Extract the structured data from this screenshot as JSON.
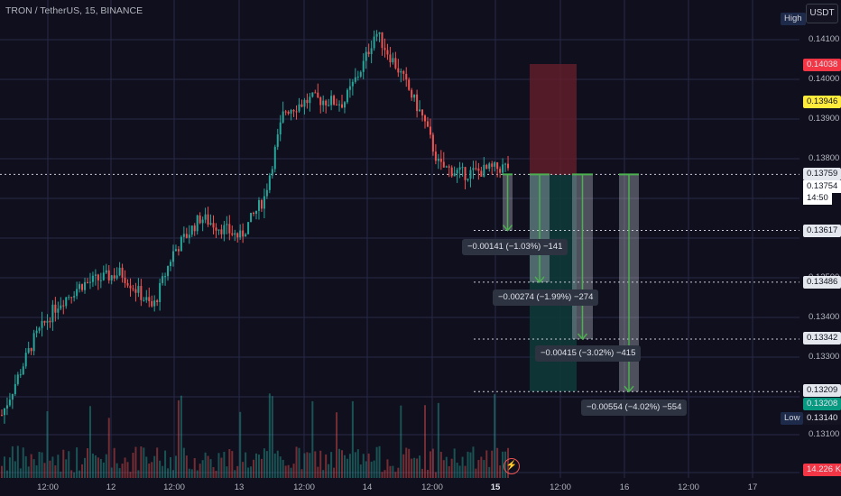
{
  "header": {
    "symbol_title": "TRON / TetherUS, 15, BINANCE",
    "currency_button": "USDT"
  },
  "price_axis": {
    "labels": [
      "0.14100",
      "0.14000",
      "0.13900",
      "0.13800",
      "0.13700",
      "0.13600",
      "0.13500",
      "0.13400",
      "0.13300",
      "0.13100"
    ],
    "high_badge": "High",
    "low_badge": "Low",
    "tags": {
      "high": "0.14038",
      "entry": "0.13946",
      "current": "0.13759",
      "last_price": "0.13754",
      "countdown": "14:50",
      "level1": "0.13617",
      "level2": "0.13486",
      "level3": "0.13342",
      "level4": "0.13209",
      "low_green": "0.13208",
      "low": "0.13140",
      "volume": "14.226 K"
    }
  },
  "time_axis": {
    "labels": [
      "12:00",
      "12",
      "12:00",
      "13",
      "12:00",
      "14",
      "12:00",
      "15",
      "12:00",
      "16",
      "12:00",
      "17"
    ]
  },
  "measurements": [
    {
      "label": "−0.00141 (−1.03%) −141"
    },
    {
      "label": "−0.00274 (−1.99%) −274"
    },
    {
      "label": "−0.00415 (−3.02%) −415"
    },
    {
      "label": "−0.00554 (−4.02%) −554"
    }
  ],
  "colors": {
    "background": "#0f0f1d",
    "grid": "#2a2946",
    "up": "#26a69a",
    "down": "#ef5350",
    "current_tag": "#e5e7ee",
    "high_tag": "#f23645",
    "entry_tag": "#ffeb3b",
    "low_green_tag": "#089981",
    "high_badge_bg": "#1e2a4a"
  },
  "icons": {
    "lightning": "lightning-icon"
  },
  "chart_data": {
    "type": "candlestick",
    "symbol": "TRON / TetherUS",
    "interval": "15",
    "exchange": "BINANCE",
    "close_points": [
      [
        0.0,
        0.1315
      ],
      [
        0.04,
        0.1334
      ],
      [
        0.07,
        0.1343
      ],
      [
        0.1,
        0.1348
      ],
      [
        0.15,
        0.1351
      ],
      [
        0.19,
        0.1342
      ],
      [
        0.215,
        0.1356
      ],
      [
        0.25,
        0.1365
      ],
      [
        0.3,
        0.136
      ],
      [
        0.33,
        0.137
      ],
      [
        0.355,
        0.1392
      ],
      [
        0.39,
        0.1395
      ],
      [
        0.43,
        0.1394
      ],
      [
        0.455,
        0.1404
      ],
      [
        0.47,
        0.1412
      ],
      [
        0.5,
        0.1402
      ],
      [
        0.53,
        0.139
      ],
      [
        0.55,
        0.1378
      ],
      [
        0.58,
        0.1376
      ],
      [
        0.61,
        0.1377
      ],
      [
        0.64,
        0.1378
      ]
    ],
    "price_range": [
      0.1308,
      0.1416
    ],
    "current_price": 0.13759,
    "high": 0.14038,
    "low": 0.1314
  }
}
